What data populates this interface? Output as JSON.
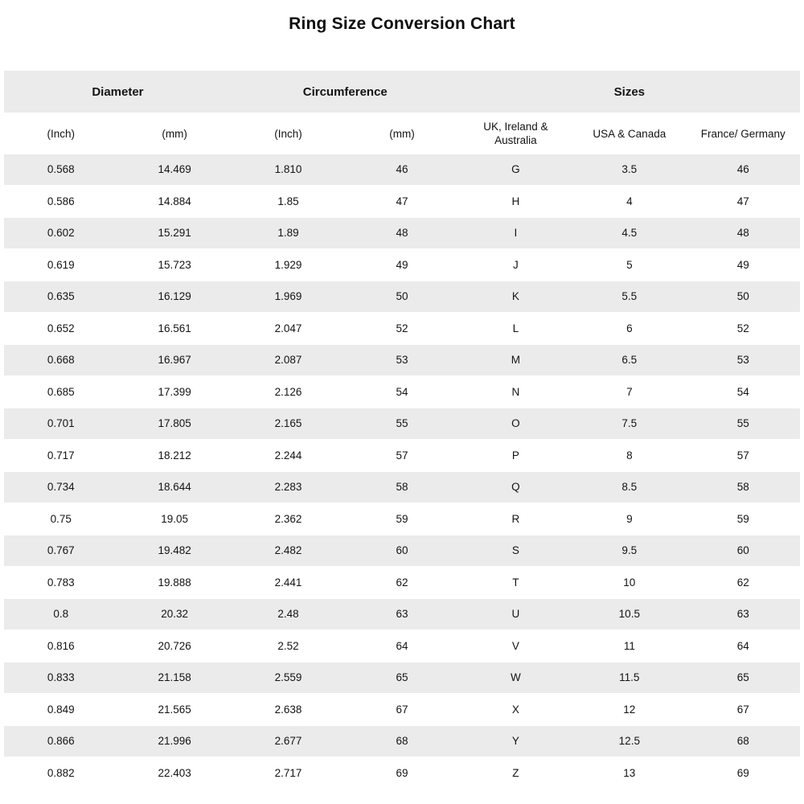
{
  "chart_data": {
    "type": "table",
    "title": "Ring Size Conversion Chart",
    "column_groups": [
      {
        "label": "Diameter",
        "span": 2
      },
      {
        "label": "Circumference",
        "span": 2
      },
      {
        "label": "Sizes",
        "span": 3
      }
    ],
    "columns": [
      "(Inch)",
      "(mm)",
      "(Inch)",
      "(mm)",
      "UK, Ireland & Australia",
      "USA & Canada",
      "France/ Germany"
    ],
    "column_keys": [
      "diameter-inch",
      "diameter-mm",
      "circumference-inch",
      "circumference-mm",
      "uk-ireland-australia",
      "usa-canada",
      "france-germany"
    ],
    "rows": [
      [
        "0.568",
        "14.469",
        "1.810",
        "46",
        "G",
        "3.5",
        "46"
      ],
      [
        "0.586",
        "14.884",
        "1.85",
        "47",
        "H",
        "4",
        "47"
      ],
      [
        "0.602",
        "15.291",
        "1.89",
        "48",
        "I",
        "4.5",
        "48"
      ],
      [
        "0.619",
        "15.723",
        "1.929",
        "49",
        "J",
        "5",
        "49"
      ],
      [
        "0.635",
        "16.129",
        "1.969",
        "50",
        "K",
        "5.5",
        "50"
      ],
      [
        "0.652",
        "16.561",
        "2.047",
        "52",
        "L",
        "6",
        "52"
      ],
      [
        "0.668",
        "16.967",
        "2.087",
        "53",
        "M",
        "6.5",
        "53"
      ],
      [
        "0.685",
        "17.399",
        "2.126",
        "54",
        "N",
        "7",
        "54"
      ],
      [
        "0.701",
        "17.805",
        "2.165",
        "55",
        "O",
        "7.5",
        "55"
      ],
      [
        "0.717",
        "18.212",
        "2.244",
        "57",
        "P",
        "8",
        "57"
      ],
      [
        "0.734",
        "18.644",
        "2.283",
        "58",
        "Q",
        "8.5",
        "58"
      ],
      [
        "0.75",
        "19.05",
        "2.362",
        "59",
        "R",
        "9",
        "59"
      ],
      [
        "0.767",
        "19.482",
        "2.482",
        "60",
        "S",
        "9.5",
        "60"
      ],
      [
        "0.783",
        "19.888",
        "2.441",
        "62",
        "T",
        "10",
        "62"
      ],
      [
        "0.8",
        "20.32",
        "2.48",
        "63",
        "U",
        "10.5",
        "63"
      ],
      [
        "0.816",
        "20.726",
        "2.52",
        "64",
        "V",
        "11",
        "64"
      ],
      [
        "0.833",
        "21.158",
        "2.559",
        "65",
        "W",
        "11.5",
        "65"
      ],
      [
        "0.849",
        "21.565",
        "2.638",
        "67",
        "X",
        "12",
        "67"
      ],
      [
        "0.866",
        "21.996",
        "2.677",
        "68",
        "Y",
        "12.5",
        "68"
      ],
      [
        "0.882",
        "22.403",
        "2.717",
        "69",
        "Z",
        "13",
        "69"
      ]
    ],
    "layout": {
      "stripe_color": "#ebebeb",
      "background_color": "#ffffff",
      "text_color": "#141414",
      "first_data_row_striped": true,
      "legend_position": "none",
      "grid": "off"
    }
  }
}
